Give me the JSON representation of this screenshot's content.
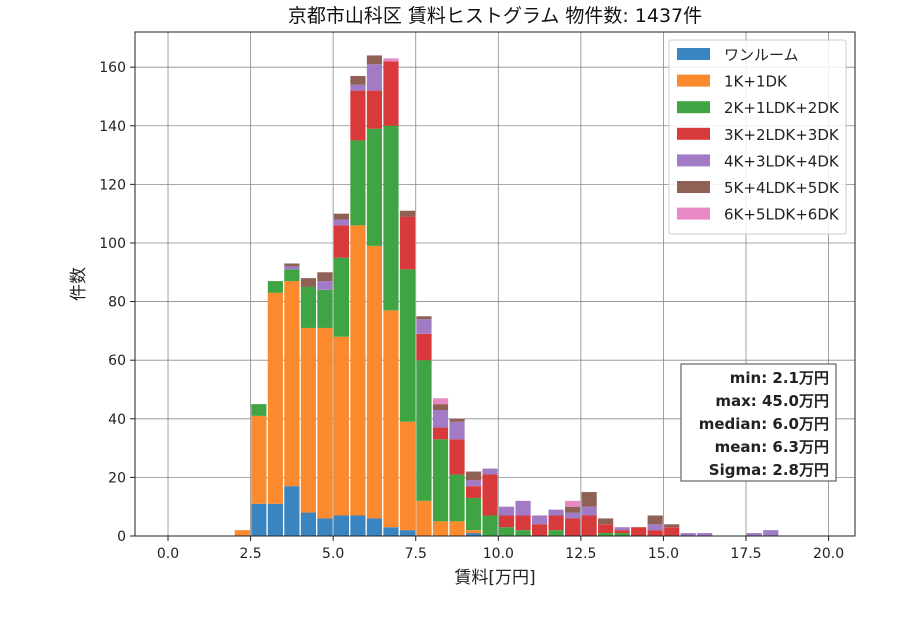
{
  "chart_data": {
    "type": "bar",
    "stacked": true,
    "title": "京都市山科区 賃料ヒストグラム 物件数: 1437件",
    "xlabel": "賃料[万円]",
    "ylabel": "件数",
    "xlim": [
      -1.0,
      20.8
    ],
    "ylim": [
      0,
      172
    ],
    "bin_width": 0.5,
    "x_ticks": [
      0.0,
      2.5,
      5.0,
      7.5,
      10.0,
      12.5,
      15.0,
      17.5,
      20.0
    ],
    "x_tick_labels": [
      "0.0",
      "2.5",
      "5.0",
      "7.5",
      "10.0",
      "12.5",
      "15.0",
      "17.5",
      "20.0"
    ],
    "y_ticks": [
      0,
      20,
      40,
      60,
      80,
      100,
      120,
      140,
      160
    ],
    "y_tick_labels": [
      "0",
      "20",
      "40",
      "60",
      "80",
      "100",
      "120",
      "140",
      "160"
    ],
    "grid": true,
    "legend_position": "top-right",
    "x": [
      2.0,
      2.5,
      3.0,
      3.5,
      4.0,
      4.5,
      5.0,
      5.5,
      6.0,
      6.5,
      7.0,
      7.5,
      8.0,
      8.5,
      9.0,
      9.5,
      10.0,
      10.5,
      11.0,
      11.5,
      12.0,
      12.5,
      13.0,
      13.5,
      14.0,
      14.5,
      15.0,
      15.5,
      16.0,
      16.5,
      17.0,
      17.5,
      18.0
    ],
    "series": [
      {
        "name": "ワンルーム",
        "color": "#3a84bf",
        "values": [
          0,
          11,
          11,
          17,
          8,
          6,
          7,
          7,
          6,
          3,
          2,
          0,
          0,
          0,
          1,
          0,
          0,
          0,
          0,
          0,
          0,
          0,
          0,
          0,
          0,
          0,
          0,
          0,
          0,
          0,
          0,
          0,
          0
        ]
      },
      {
        "name": "1K+1DK",
        "color": "#fb8a2e",
        "values": [
          2,
          30,
          72,
          70,
          63,
          65,
          61,
          99,
          93,
          74,
          37,
          12,
          5,
          5,
          1,
          0,
          0,
          0,
          0,
          0,
          0,
          0,
          0,
          0,
          0,
          0,
          0,
          0,
          0,
          0,
          0,
          0,
          0
        ]
      },
      {
        "name": "2K+1LDK+2DK",
        "color": "#3fa443",
        "values": [
          0,
          4,
          4,
          4,
          14,
          13,
          27,
          29,
          40,
          63,
          52,
          48,
          28,
          16,
          11,
          7,
          3,
          2,
          0,
          2,
          0,
          0,
          1,
          1,
          0,
          0,
          0,
          0,
          0,
          0,
          0,
          0,
          0
        ]
      },
      {
        "name": "3K+2LDK+3DK",
        "color": "#d83a3b",
        "values": [
          0,
          0,
          0,
          0,
          0,
          0,
          11,
          17,
          13,
          22,
          18,
          9,
          4,
          12,
          4,
          14,
          4,
          5,
          4,
          5,
          6,
          7,
          3,
          1,
          3,
          2,
          3,
          0,
          0,
          0,
          0,
          0,
          0
        ]
      },
      {
        "name": "4K+3LDK+4DK",
        "color": "#a17bc6",
        "values": [
          0,
          0,
          0,
          1,
          0,
          3,
          2,
          2,
          9,
          0,
          0,
          5,
          6,
          6,
          2,
          2,
          3,
          5,
          3,
          2,
          2,
          3,
          0,
          1,
          0,
          2,
          0,
          1,
          1,
          0,
          0,
          1,
          2
        ]
      },
      {
        "name": "5K+4LDK+5DK",
        "color": "#8f6155",
        "values": [
          0,
          0,
          0,
          1,
          3,
          3,
          2,
          3,
          3,
          0,
          2,
          1,
          2,
          1,
          3,
          0,
          0,
          0,
          0,
          0,
          2,
          5,
          2,
          0,
          0,
          3,
          1,
          0,
          0,
          0,
          0,
          0,
          0
        ]
      },
      {
        "name": "6K+5LDK+6DK",
        "color": "#e889c5",
        "values": [
          0,
          0,
          0,
          0,
          0,
          0,
          0,
          0,
          0,
          1,
          0,
          0,
          2,
          0,
          0,
          0,
          0,
          0,
          0,
          0,
          2,
          0,
          0,
          0,
          0,
          0,
          0,
          0,
          0,
          0,
          0,
          0,
          0
        ]
      }
    ],
    "stats": {
      "min": "min: 2.1万円",
      "max": "max: 45.0万円",
      "median": "median: 6.0万円",
      "mean": "mean: 6.3万円",
      "sigma": "Sigma: 2.8万円"
    }
  }
}
